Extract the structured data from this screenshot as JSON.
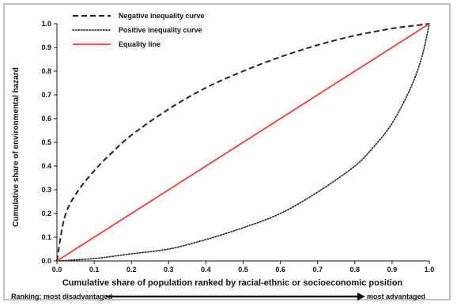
{
  "chart_data": {
    "type": "line",
    "xlabel": "Cumulative share of population ranked by racial-ethnic or socioeconomic position",
    "ylabel": "Cumulative share of environmental hazard",
    "xlim": [
      0,
      1
    ],
    "ylim": [
      0,
      1
    ],
    "x_ticks": [
      "0.0",
      "0.1",
      "0.2",
      "0.3",
      "0.4",
      "0.5",
      "0.6",
      "0.7",
      "0.8",
      "0.9",
      "1.0"
    ],
    "y_ticks": [
      "0.0",
      "0.1",
      "0.2",
      "0.3",
      "0.4",
      "0.5",
      "0.6",
      "0.7",
      "0.8",
      "0.9",
      "1.0"
    ],
    "grid": false,
    "legend_position": "top-left",
    "series": [
      {
        "name": "Negative inequality curve",
        "style": "dashed",
        "color": "#222222",
        "x": [
          0,
          0.02,
          0.05,
          0.1,
          0.15,
          0.2,
          0.3,
          0.4,
          0.5,
          0.6,
          0.7,
          0.8,
          0.9,
          0.95,
          1.0
        ],
        "y": [
          0,
          0.18,
          0.28,
          0.38,
          0.46,
          0.53,
          0.64,
          0.73,
          0.8,
          0.86,
          0.91,
          0.95,
          0.98,
          0.99,
          1.0
        ]
      },
      {
        "name": "Positive inequality curve",
        "style": "dotted",
        "color": "#222222",
        "x": [
          0,
          0.1,
          0.2,
          0.3,
          0.4,
          0.5,
          0.6,
          0.7,
          0.8,
          0.85,
          0.9,
          0.95,
          0.98,
          1.0
        ],
        "y": [
          0,
          0.01,
          0.03,
          0.05,
          0.09,
          0.14,
          0.2,
          0.29,
          0.4,
          0.48,
          0.58,
          0.73,
          0.86,
          1.0
        ]
      },
      {
        "name": "Equality line",
        "style": "solid",
        "color": "#e8413a",
        "x": [
          0,
          1
        ],
        "y": [
          0,
          1
        ]
      }
    ]
  },
  "ranking": {
    "left_label": "Ranking: most disadvantaged",
    "right_label": "most advantaged"
  }
}
